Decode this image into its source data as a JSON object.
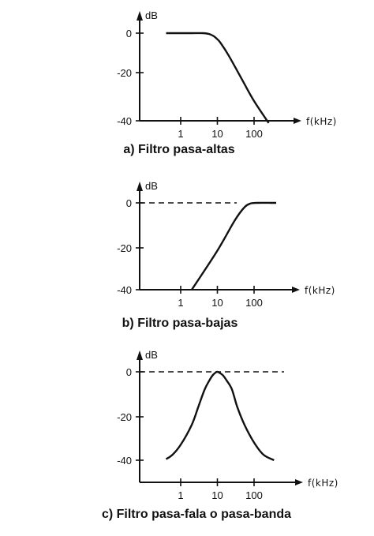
{
  "ylabel": "dB",
  "xlabel": "f(kHz)",
  "yticks": [
    "0",
    "-20",
    "-40"
  ],
  "xticks": [
    "1",
    "10",
    "100"
  ],
  "panels": [
    {
      "caption": "a) Filtro pasa-altas",
      "reference_line": false,
      "curve_points": [
        [
          0.4,
          0
        ],
        [
          0.6,
          0
        ],
        [
          1,
          0
        ],
        [
          2,
          0
        ],
        [
          4,
          0
        ],
        [
          6,
          -0.4
        ],
        [
          8,
          -1.4
        ],
        [
          10,
          -2.8
        ],
        [
          12,
          -4.3
        ],
        [
          20,
          -10
        ],
        [
          50,
          -22
        ],
        [
          100,
          -31
        ],
        [
          250,
          -41
        ]
      ]
    },
    {
      "caption": "b) Filtro pasa-bajas",
      "reference_line": true,
      "curve_points": [
        [
          2,
          -40
        ],
        [
          10,
          -22
        ],
        [
          30,
          -8
        ],
        [
          55,
          -2
        ],
        [
          80,
          -0.3
        ],
        [
          120,
          0
        ],
        [
          300,
          0
        ],
        [
          400,
          0
        ]
      ]
    },
    {
      "caption": "c) Filtro pasa-fala o pasa-banda",
      "reference_line": true,
      "curve_points": [
        [
          0.4,
          -39.5
        ],
        [
          0.6,
          -37.5
        ],
        [
          1,
          -33
        ],
        [
          2,
          -24
        ],
        [
          3,
          -16
        ],
        [
          4.5,
          -8
        ],
        [
          6,
          -4
        ],
        [
          7.5,
          -1.5
        ],
        [
          9,
          -0.3
        ],
        [
          10,
          0
        ],
        [
          11,
          -0.3
        ],
        [
          14,
          -1.5
        ],
        [
          18,
          -4
        ],
        [
          25,
          -8
        ],
        [
          35,
          -16
        ],
        [
          55,
          -24
        ],
        [
          100,
          -32
        ],
        [
          180,
          -37.5
        ],
        [
          350,
          -40
        ]
      ]
    }
  ]
}
